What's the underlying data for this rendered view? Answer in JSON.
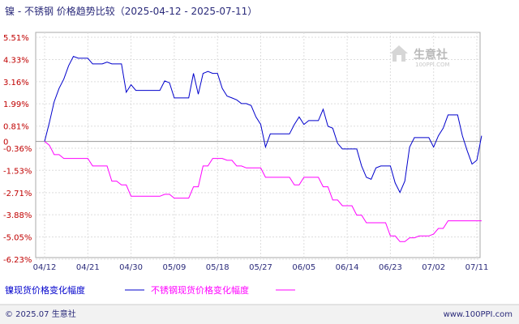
{
  "title": "镍 - 不锈钢 价格趋势比较（2025-04-12 - 2025-07-11）",
  "watermark": {
    "name": "生意社",
    "site": "100PPI.COM"
  },
  "footer": {
    "left": "© 2025.07 生意社",
    "right": "www.100PPI.com"
  },
  "colors": {
    "series1": "#0000cc",
    "series2": "#ff00ff",
    "ytick": "#c00000",
    "text": "#2a2a7a",
    "grid": "#dddddd",
    "zero": "#999999"
  },
  "chart_data": {
    "type": "line",
    "title": "镍 - 不锈钢 价格趋势比较（2025-04-12 - 2025-07-11）",
    "xlabel": "",
    "ylabel": "",
    "ylim": [
      -6.23,
      5.51
    ],
    "grid": true,
    "legend_position": "bottom",
    "y_ticks": [
      5.51,
      4.33,
      3.16,
      1.99,
      0.81,
      0,
      -0.36,
      -1.53,
      -2.71,
      -3.88,
      -5.05,
      -6.23
    ],
    "y_tick_labels": [
      "5.51%",
      "4.33%",
      "3.16%",
      "1.99%",
      "0.81%",
      "0",
      "-0.36%",
      "-1.53%",
      "-2.71%",
      "-3.88%",
      "-5.05%",
      "-6.23%"
    ],
    "x_ticks": [
      "04/12",
      "04/21",
      "04/30",
      "05/09",
      "05/18",
      "05/27",
      "06/05",
      "06/14",
      "06/23",
      "07/02",
      "07/11"
    ],
    "x_start": "2025-04-12",
    "x_end": "2025-07-11",
    "series": [
      {
        "name": "镍现货价格变化幅度",
        "color": "#0000cc",
        "points": [
          [
            "04/12",
            0
          ],
          [
            "04/13",
            1.0
          ],
          [
            "04/14",
            2.1
          ],
          [
            "04/15",
            2.8
          ],
          [
            "04/16",
            3.3
          ],
          [
            "04/17",
            4.0
          ],
          [
            "04/18",
            4.5
          ],
          [
            "04/19",
            4.4
          ],
          [
            "04/20",
            4.4
          ],
          [
            "04/21",
            4.4
          ],
          [
            "04/22",
            4.1
          ],
          [
            "04/23",
            4.1
          ],
          [
            "04/24",
            4.1
          ],
          [
            "04/25",
            4.2
          ],
          [
            "04/26",
            4.1
          ],
          [
            "04/27",
            4.1
          ],
          [
            "04/28",
            4.1
          ],
          [
            "04/29",
            2.6
          ],
          [
            "04/30",
            3.0
          ],
          [
            "05/01",
            2.7
          ],
          [
            "05/02",
            2.7
          ],
          [
            "05/03",
            2.7
          ],
          [
            "05/04",
            2.7
          ],
          [
            "05/05",
            2.7
          ],
          [
            "05/06",
            2.7
          ],
          [
            "05/07",
            3.2
          ],
          [
            "05/08",
            3.1
          ],
          [
            "05/09",
            2.3
          ],
          [
            "05/10",
            2.3
          ],
          [
            "05/11",
            2.3
          ],
          [
            "05/12",
            2.3
          ],
          [
            "05/13",
            3.6
          ],
          [
            "05/14",
            2.5
          ],
          [
            "05/15",
            3.6
          ],
          [
            "05/16",
            3.7
          ],
          [
            "05/17",
            3.6
          ],
          [
            "05/18",
            3.6
          ],
          [
            "05/19",
            2.8
          ],
          [
            "05/20",
            2.4
          ],
          [
            "05/21",
            2.3
          ],
          [
            "05/22",
            2.2
          ],
          [
            "05/23",
            2.0
          ],
          [
            "05/24",
            2.0
          ],
          [
            "05/25",
            1.9
          ],
          [
            "05/26",
            1.3
          ],
          [
            "05/27",
            0.9
          ],
          [
            "05/28",
            -0.3
          ],
          [
            "05/29",
            0.4
          ],
          [
            "05/30",
            0.4
          ],
          [
            "05/31",
            0.4
          ],
          [
            "06/01",
            0.4
          ],
          [
            "06/02",
            0.4
          ],
          [
            "06/03",
            0.9
          ],
          [
            "06/04",
            1.3
          ],
          [
            "06/05",
            0.9
          ],
          [
            "06/06",
            1.1
          ],
          [
            "06/07",
            1.1
          ],
          [
            "06/08",
            1.1
          ],
          [
            "06/09",
            1.7
          ],
          [
            "06/10",
            0.8
          ],
          [
            "06/11",
            0.7
          ],
          [
            "06/12",
            -0.1
          ],
          [
            "06/13",
            -0.4
          ],
          [
            "06/14",
            -0.4
          ],
          [
            "06/15",
            -0.4
          ],
          [
            "06/16",
            -0.4
          ],
          [
            "06/17",
            -1.3
          ],
          [
            "06/18",
            -1.9
          ],
          [
            "06/19",
            -2.0
          ],
          [
            "06/20",
            -1.4
          ],
          [
            "06/21",
            -1.3
          ],
          [
            "06/22",
            -1.3
          ],
          [
            "06/23",
            -1.3
          ],
          [
            "06/24",
            -2.2
          ],
          [
            "06/25",
            -2.7
          ],
          [
            "06/26",
            -2.1
          ],
          [
            "06/27",
            -0.3
          ],
          [
            "06/28",
            0.2
          ],
          [
            "06/29",
            0.2
          ],
          [
            "06/30",
            0.2
          ],
          [
            "07/01",
            0.2
          ],
          [
            "07/02",
            -0.3
          ],
          [
            "07/03",
            0.3
          ],
          [
            "07/04",
            0.7
          ],
          [
            "07/05",
            1.4
          ],
          [
            "07/06",
            1.4
          ],
          [
            "07/07",
            1.4
          ],
          [
            "07/08",
            0.3
          ],
          [
            "07/09",
            -0.5
          ],
          [
            "07/10",
            -1.2
          ],
          [
            "07/11",
            -1.0
          ],
          [
            "07/12",
            0.3
          ]
        ]
      },
      {
        "name": "不锈钢现货价格变化幅度",
        "color": "#ff00ff",
        "points": [
          [
            "04/12",
            0
          ],
          [
            "04/13",
            -0.2
          ],
          [
            "04/14",
            -0.7
          ],
          [
            "04/15",
            -0.7
          ],
          [
            "04/16",
            -0.9
          ],
          [
            "04/17",
            -0.9
          ],
          [
            "04/18",
            -0.9
          ],
          [
            "04/19",
            -0.9
          ],
          [
            "04/20",
            -0.9
          ],
          [
            "04/21",
            -0.9
          ],
          [
            "04/22",
            -1.3
          ],
          [
            "04/23",
            -1.3
          ],
          [
            "04/24",
            -1.3
          ],
          [
            "04/25",
            -1.3
          ],
          [
            "04/26",
            -2.1
          ],
          [
            "04/27",
            -2.1
          ],
          [
            "04/28",
            -2.3
          ],
          [
            "04/29",
            -2.3
          ],
          [
            "04/30",
            -2.9
          ],
          [
            "05/01",
            -2.9
          ],
          [
            "05/02",
            -2.9
          ],
          [
            "05/03",
            -2.9
          ],
          [
            "05/04",
            -2.9
          ],
          [
            "05/05",
            -2.9
          ],
          [
            "05/06",
            -2.9
          ],
          [
            "05/07",
            -2.8
          ],
          [
            "05/08",
            -2.8
          ],
          [
            "05/09",
            -3.0
          ],
          [
            "05/10",
            -3.0
          ],
          [
            "05/11",
            -3.0
          ],
          [
            "05/12",
            -3.0
          ],
          [
            "05/13",
            -2.4
          ],
          [
            "05/14",
            -2.4
          ],
          [
            "05/15",
            -1.3
          ],
          [
            "05/16",
            -1.3
          ],
          [
            "05/17",
            -0.9
          ],
          [
            "05/18",
            -0.9
          ],
          [
            "05/19",
            -0.9
          ],
          [
            "05/20",
            -1.0
          ],
          [
            "05/21",
            -1.0
          ],
          [
            "05/22",
            -1.3
          ],
          [
            "05/23",
            -1.3
          ],
          [
            "05/24",
            -1.4
          ],
          [
            "05/25",
            -1.4
          ],
          [
            "05/26",
            -1.4
          ],
          [
            "05/27",
            -1.4
          ],
          [
            "05/28",
            -1.9
          ],
          [
            "05/29",
            -1.9
          ],
          [
            "05/30",
            -1.9
          ],
          [
            "05/31",
            -1.9
          ],
          [
            "06/01",
            -1.9
          ],
          [
            "06/02",
            -1.9
          ],
          [
            "06/03",
            -2.3
          ],
          [
            "06/04",
            -2.3
          ],
          [
            "06/05",
            -1.9
          ],
          [
            "06/06",
            -1.9
          ],
          [
            "06/07",
            -1.9
          ],
          [
            "06/08",
            -1.9
          ],
          [
            "06/09",
            -2.4
          ],
          [
            "06/10",
            -2.4
          ],
          [
            "06/11",
            -3.1
          ],
          [
            "06/12",
            -3.1
          ],
          [
            "06/13",
            -3.4
          ],
          [
            "06/14",
            -3.4
          ],
          [
            "06/15",
            -3.4
          ],
          [
            "06/16",
            -3.9
          ],
          [
            "06/17",
            -3.9
          ],
          [
            "06/18",
            -4.3
          ],
          [
            "06/19",
            -4.3
          ],
          [
            "06/20",
            -4.3
          ],
          [
            "06/21",
            -4.3
          ],
          [
            "06/22",
            -4.3
          ],
          [
            "06/23",
            -5.0
          ],
          [
            "06/24",
            -5.0
          ],
          [
            "06/25",
            -5.3
          ],
          [
            "06/26",
            -5.3
          ],
          [
            "06/27",
            -5.1
          ],
          [
            "06/28",
            -5.1
          ],
          [
            "06/29",
            -5.0
          ],
          [
            "06/30",
            -5.0
          ],
          [
            "07/01",
            -5.0
          ],
          [
            "07/02",
            -4.9
          ],
          [
            "07/03",
            -4.6
          ],
          [
            "07/04",
            -4.6
          ],
          [
            "07/05",
            -4.2
          ],
          [
            "07/06",
            -4.2
          ],
          [
            "07/07",
            -4.2
          ],
          [
            "07/08",
            -4.2
          ],
          [
            "07/09",
            -4.2
          ],
          [
            "07/10",
            -4.2
          ],
          [
            "07/11",
            -4.2
          ],
          [
            "07/12",
            -4.2
          ]
        ]
      }
    ]
  }
}
